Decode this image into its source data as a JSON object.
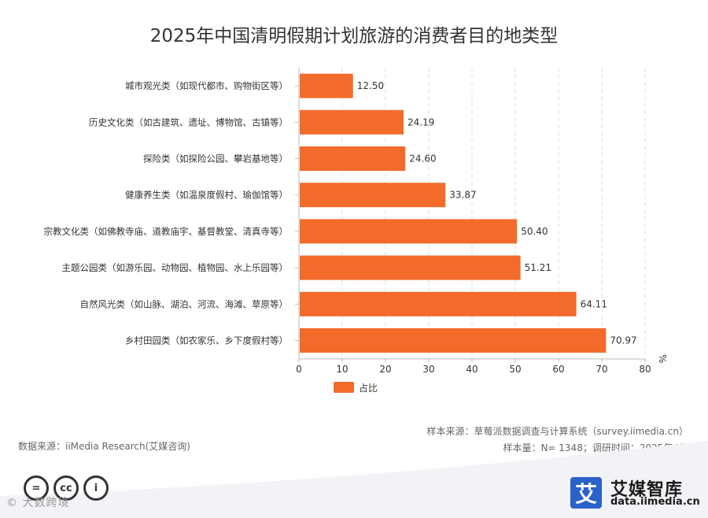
{
  "title": "2025年中国清明假期计划旅游的消费者目的地类型",
  "chart_data": {
    "type": "bar",
    "orientation": "horizontal",
    "categories": [
      "城市观光类（如现代都市、购物街区等）",
      "历史文化类（如古建筑、遗址、博物馆、古镇等）",
      "探险类（如探险公园、攀岩基地等）",
      "健康养生类（如温泉度假村、瑜伽馆等）",
      "宗教文化类（如佛教寺庙、道教庙宇、基督教堂、清真寺等）",
      "主题公园类（如游乐园、动物园、植物园、水上乐园等）",
      "自然风光类（如山脉、湖泊、河流、海滩、草原等）",
      "乡村田园类（如农家乐、乡下度假村等）"
    ],
    "series": [
      {
        "name": "占比",
        "values": [
          12.5,
          24.19,
          24.6,
          33.87,
          50.4,
          51.21,
          64.11,
          70.97
        ]
      }
    ],
    "value_labels": [
      "12.50",
      "24.19",
      "24.60",
      "33.87",
      "50.40",
      "51.21",
      "64.11",
      "70.97"
    ],
    "xlim": [
      0,
      80
    ],
    "xticks": [
      "0",
      "10",
      "20",
      "30",
      "40",
      "50",
      "60",
      "70",
      "80"
    ],
    "unit": "%",
    "grid": "vertical dashed",
    "legend": "bottom-left",
    "colors": {
      "bar": "#f26b2a",
      "grid": "#dddddd",
      "axis": "#bbbbbb"
    }
  },
  "source": {
    "data_source": "数据来源：iiMedia Research(艾媒咨询)",
    "sample_source": "样本来源：草莓派数据调查与计算系统（survey.iimedia.cn）",
    "sample_info": "样本量：N= 1348；调研时间：2025年4月"
  },
  "footer": {
    "license_icons": [
      "equals-icon",
      "cc-icon",
      "person-icon"
    ],
    "license_labels": [
      "=",
      "cc",
      "i"
    ],
    "watermark": "© 大数跨境",
    "logo_glyph": "艾",
    "brand_name": "艾媒智库",
    "brand_url": "data.iimedia.cn",
    "brand_color": "#2b62c9"
  }
}
